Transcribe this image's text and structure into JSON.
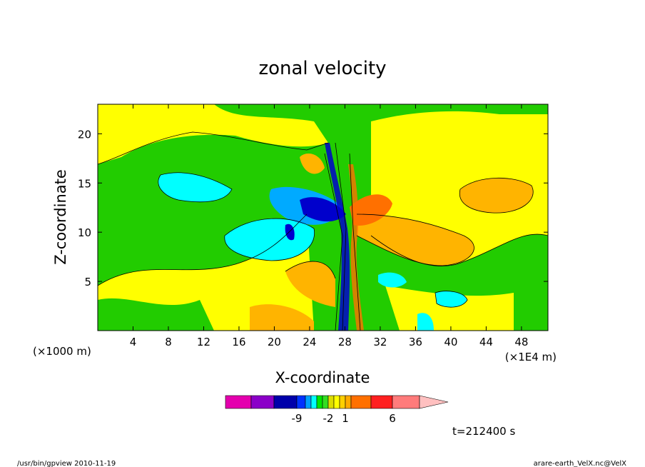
{
  "chart_data": {
    "type": "heatmap",
    "title": "zonal velocity",
    "xlabel": "X-coordinate",
    "ylabel": "Z-coordinate",
    "x_unit_left": "(×1000 m)",
    "x_unit_right": "(×1E4 m)",
    "x_ticks": [
      4,
      8,
      12,
      16,
      20,
      24,
      28,
      32,
      36,
      40,
      44,
      48
    ],
    "y_ticks": [
      5,
      10,
      15,
      20
    ],
    "xlim": [
      0,
      51
    ],
    "ylim": [
      0,
      23
    ],
    "colorbar": {
      "tick_labels": [
        {
          "label": "-9",
          "index": 2
        },
        {
          "label": "-2",
          "index": 7
        },
        {
          "label": "1",
          "index": 10
        },
        {
          "label": "6",
          "index": 13
        }
      ],
      "colors": [
        "#e400ae",
        "#8b00c8",
        "#0000aa",
        "#0032ff",
        "#00a0ff",
        "#00ffff",
        "#00e600",
        "#33dd22",
        "#dddd00",
        "#ffff00",
        "#ffd000",
        "#ffaa00",
        "#ff7000",
        "#ff2020",
        "#ff7b7b",
        "#ffc0c0"
      ],
      "extend": "max"
    },
    "annotation": "t=212400 s"
  },
  "footer": {
    "left": "/usr/bin/gpview 2010-11-19",
    "right": "arare-earth_VelX.nc@VelX"
  },
  "colors": {
    "green": "#22cc00",
    "yellow": "#ffff00",
    "orange": "#ffb400",
    "dark_orange": "#ff7000",
    "cyan": "#00ffff",
    "blue": "#0000cc",
    "light_blue": "#00aaff"
  }
}
